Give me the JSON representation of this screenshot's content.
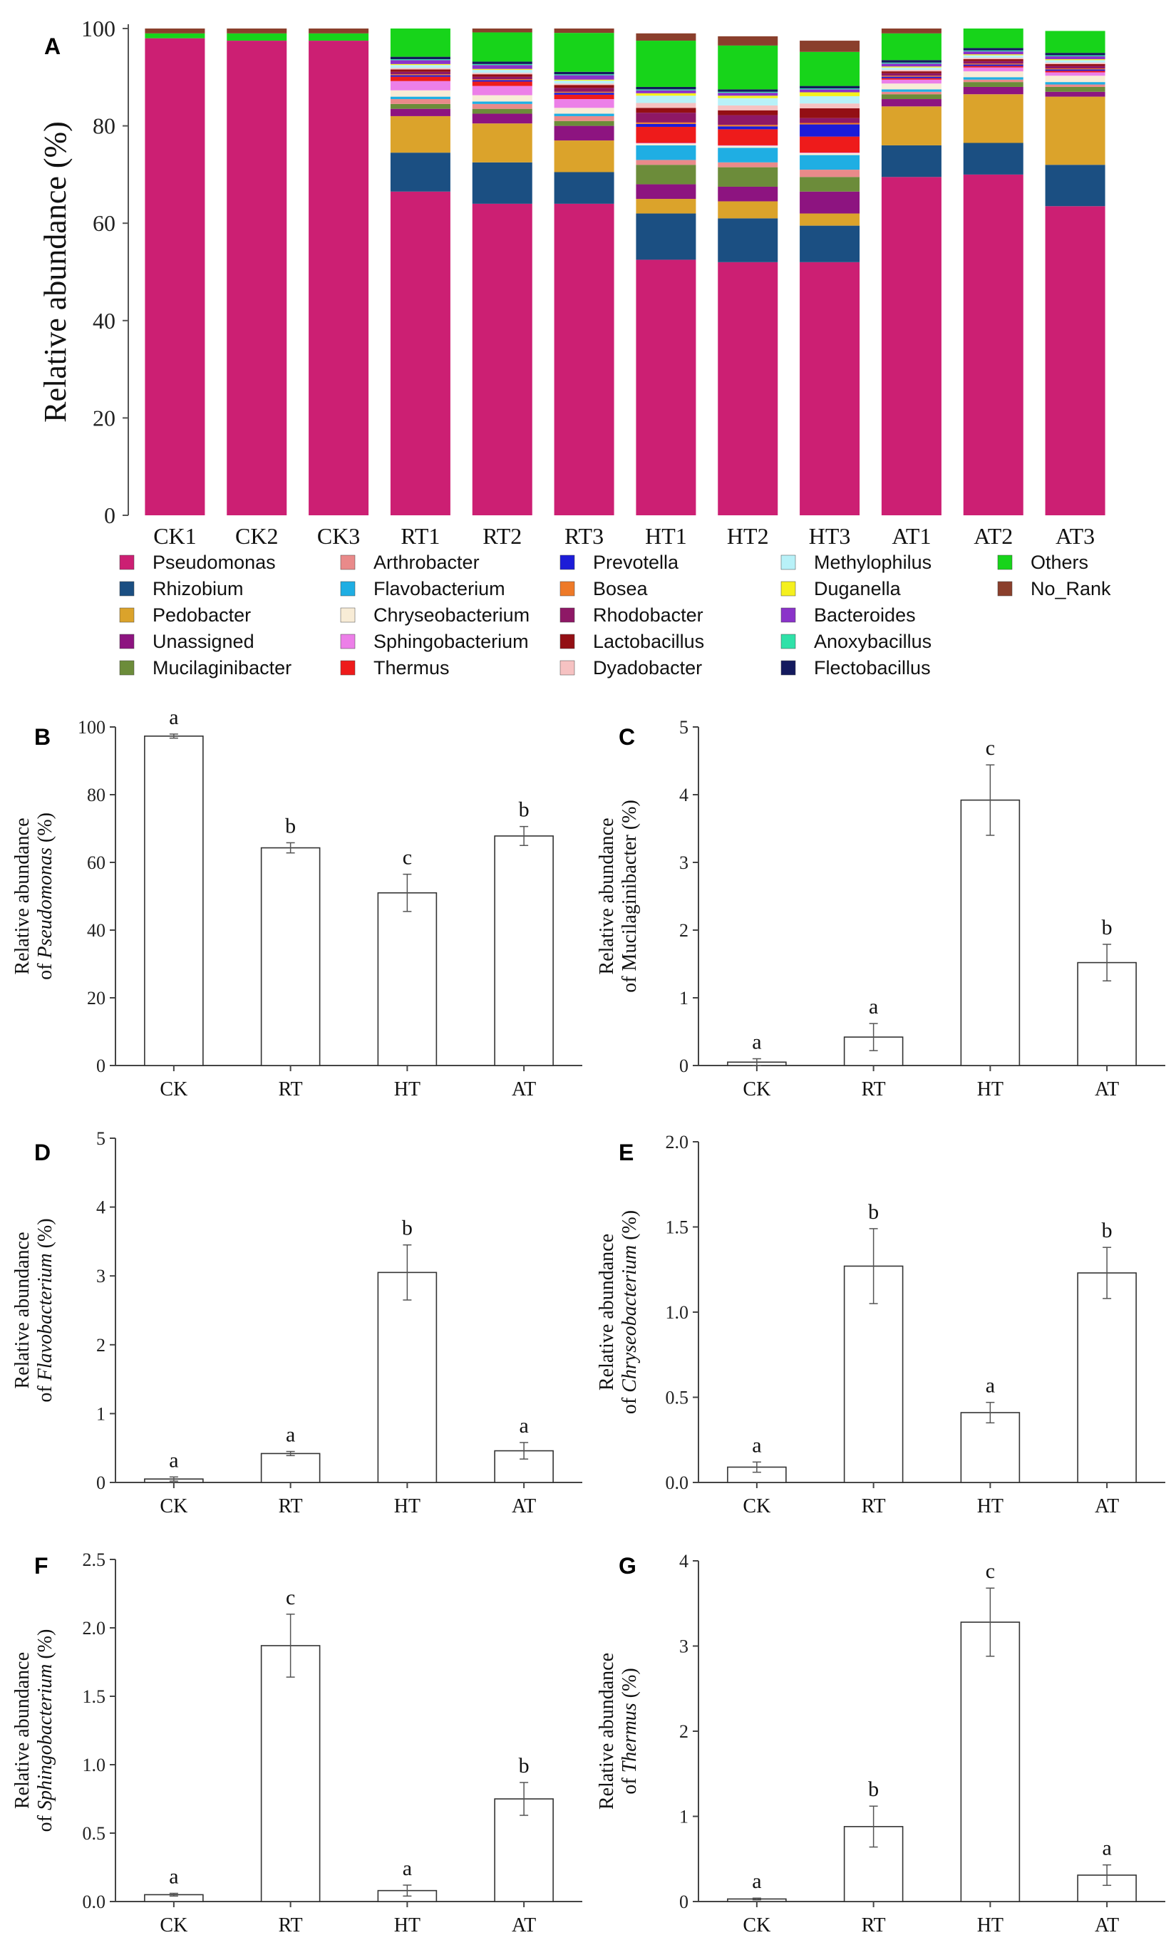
{
  "figure_title": "",
  "chart_data": [
    {
      "panel": "A",
      "type": "bar",
      "stacked": true,
      "ylabel": "Relative abundance (%)",
      "ylim": [
        0,
        100
      ],
      "yticks": [
        0,
        20,
        40,
        60,
        80,
        100
      ],
      "categories": [
        "CK1",
        "CK2",
        "CK3",
        "RT1",
        "RT2",
        "RT3",
        "HT1",
        "HT2",
        "HT3",
        "AT1",
        "AT2",
        "AT3"
      ],
      "series": [
        {
          "name": "Pseudomonas",
          "color": "#cc1f73",
          "values": [
            98,
            97.5,
            97.5,
            66.5,
            64,
            64,
            52.5,
            52,
            52,
            69.5,
            70,
            63.5
          ]
        },
        {
          "name": "Rhizobium",
          "color": "#1b4f82",
          "values": [
            0,
            0,
            0,
            8,
            8.5,
            6.5,
            9.5,
            9,
            7.5,
            6.5,
            6.5,
            8.5
          ]
        },
        {
          "name": "Pedobacter",
          "color": "#dba32b",
          "values": [
            0,
            0,
            0,
            7.5,
            8,
            6.5,
            3,
            3.5,
            2.5,
            8,
            10,
            14
          ]
        },
        {
          "name": "Unassigned",
          "color": "#8d1480",
          "values": [
            0,
            0,
            0,
            1.5,
            2,
            3,
            3,
            3,
            4.5,
            1.5,
            1.5,
            1
          ]
        },
        {
          "name": "Mucilaginibacter",
          "color": "#6c8c3a",
          "values": [
            0,
            0,
            0,
            1,
            1,
            1,
            4,
            4,
            3,
            1,
            1,
            1
          ]
        },
        {
          "name": "Arthrobacter",
          "color": "#e98a8a",
          "values": [
            0,
            0,
            0,
            1,
            1,
            1,
            1,
            1,
            1.5,
            0.5,
            0.5,
            0.5
          ]
        },
        {
          "name": "Flavobacterium",
          "color": "#1faee3",
          "values": [
            0,
            0,
            0,
            0.5,
            0.5,
            0.5,
            3,
            3,
            3,
            0.5,
            0.5,
            0.5
          ]
        },
        {
          "name": "Chryseobacterium",
          "color": "#f8ecd6",
          "values": [
            0,
            0,
            0,
            1.3,
            1.3,
            1.2,
            0.4,
            0.4,
            0.4,
            1.2,
            1.2,
            1.3
          ]
        },
        {
          "name": "Sphingobacterium",
          "color": "#ec7fe8",
          "values": [
            0,
            0,
            0,
            1.9,
            1.9,
            1.8,
            0.1,
            0.1,
            0.1,
            0.8,
            0.8,
            0.7
          ]
        },
        {
          "name": "Thermus",
          "color": "#ee1b1b",
          "values": [
            0,
            0,
            0,
            0.9,
            0.9,
            0.9,
            3.3,
            3.3,
            3.3,
            0.3,
            0.3,
            0.3
          ]
        },
        {
          "name": "Prevotella",
          "color": "#1c1cd8",
          "values": [
            0,
            0,
            0,
            0.3,
            0.3,
            0.4,
            0.6,
            0.6,
            2.5,
            0.3,
            0.3,
            0.3
          ]
        },
        {
          "name": "Bosea",
          "color": "#ee7a28",
          "values": [
            0,
            0,
            0,
            0.2,
            0.2,
            0.2,
            0.3,
            0.3,
            0.3,
            0.2,
            0.2,
            0.2
          ]
        },
        {
          "name": "Rhodobacter",
          "color": "#8e1866",
          "values": [
            0,
            0,
            0,
            0.5,
            0.5,
            0.8,
            2,
            2,
            1,
            0.5,
            0.5,
            0.5
          ]
        },
        {
          "name": "Lactobacillus",
          "color": "#930f14",
          "values": [
            0,
            0,
            0,
            0.5,
            0.5,
            0.6,
            1,
            1,
            2,
            0.4,
            0.4,
            0.4
          ]
        },
        {
          "name": "Dyadobacter",
          "color": "#f6c2c2",
          "values": [
            0,
            0,
            0,
            0.3,
            0.3,
            0.3,
            1,
            1,
            1,
            0.3,
            0.3,
            0.3
          ]
        },
        {
          "name": "Methylophilus",
          "color": "#b8f1f8",
          "values": [
            0,
            0,
            0,
            0.6,
            0.6,
            0.6,
            1.5,
            1.5,
            1.5,
            0.5,
            0.5,
            0.5
          ]
        },
        {
          "name": "Duganella",
          "color": "#f5f01e",
          "values": [
            0,
            0,
            0,
            0.2,
            0.2,
            0.2,
            0.5,
            0.5,
            0.8,
            0.2,
            0.2,
            0.2
          ]
        },
        {
          "name": "Bacteroides",
          "color": "#8a33c9",
          "values": [
            0,
            0,
            0,
            0.8,
            0.8,
            0.9,
            0.6,
            0.6,
            0.6,
            0.6,
            0.6,
            0.6
          ]
        },
        {
          "name": "Anoxybacillus",
          "color": "#2fe1a8",
          "values": [
            0,
            0,
            0,
            0.2,
            0.2,
            0.2,
            0.2,
            0.2,
            0.2,
            0.2,
            0.2,
            0.2
          ]
        },
        {
          "name": "Flectobacillus",
          "color": "#141a5e",
          "values": [
            0,
            0,
            0,
            0.5,
            0.5,
            0.5,
            0.5,
            0.5,
            0.5,
            0.5,
            0.5,
            0.5
          ]
        },
        {
          "name": "Others",
          "color": "#17d41a",
          "values": [
            1,
            1.5,
            1.5,
            6.5,
            6,
            8,
            9.5,
            9,
            7,
            5.5,
            4,
            4.5
          ]
        },
        {
          "name": "No_Rank",
          "color": "#8a3f2c",
          "values": [
            1,
            1,
            1,
            1.3,
            1.3,
            2.2,
            1.5,
            1.9,
            2.3,
            1.9,
            1.3,
            0
          ]
        }
      ]
    },
    {
      "panel": "B",
      "type": "bar",
      "ylabel_line1": "Relative abundance",
      "ylabel_line2_pre": "of ",
      "ylabel_taxon": "Pseudomonas",
      "ylabel_line2_post": " (%)",
      "categories": [
        "CK",
        "RT",
        "HT",
        "AT"
      ],
      "values": [
        97.3,
        64.3,
        51,
        67.8
      ],
      "errors": [
        0.6,
        1.5,
        5.5,
        2.8
      ],
      "letters": [
        "a",
        "b",
        "c",
        "b"
      ],
      "ylim": [
        0,
        100
      ],
      "yticks": [
        "0",
        "20",
        "40",
        "60",
        "80",
        "100"
      ]
    },
    {
      "panel": "C",
      "type": "bar",
      "ylabel_line1": "Relative abundance",
      "ylabel_line2_pre": "of ",
      "ylabel_taxon": "Mucilaginibacter",
      "ylabel_line2_post": " (%)",
      "taxon_italic": false,
      "categories": [
        "CK",
        "RT",
        "HT",
        "AT"
      ],
      "values": [
        0.05,
        0.42,
        3.92,
        1.52
      ],
      "errors": [
        0.05,
        0.2,
        0.52,
        0.27
      ],
      "letters": [
        "a",
        "a",
        "c",
        "b"
      ],
      "ylim": [
        0,
        5
      ],
      "yticks": [
        "0",
        "1",
        "2",
        "3",
        "4",
        "5"
      ]
    },
    {
      "panel": "D",
      "type": "bar",
      "ylabel_line1": "Relative abundance",
      "ylabel_line2_pre": "of ",
      "ylabel_taxon": "Flavobacterium",
      "ylabel_line2_post": " (%)",
      "categories": [
        "CK",
        "RT",
        "HT",
        "AT"
      ],
      "values": [
        0.05,
        0.42,
        3.05,
        0.46
      ],
      "errors": [
        0.03,
        0.03,
        0.4,
        0.12
      ],
      "letters": [
        "a",
        "a",
        "b",
        "a"
      ],
      "ylim": [
        0,
        5
      ],
      "yticks": [
        "0",
        "1",
        "2",
        "3",
        "4",
        "5"
      ]
    },
    {
      "panel": "E",
      "type": "bar",
      "ylabel_line1": "Relative abundance",
      "ylabel_line2_pre": "of ",
      "ylabel_taxon": "Chryseobacterium",
      "ylabel_line2_post": " (%)",
      "categories": [
        "CK",
        "RT",
        "HT",
        "AT"
      ],
      "values": [
        0.09,
        1.27,
        0.41,
        1.23
      ],
      "errors": [
        0.03,
        0.22,
        0.06,
        0.15
      ],
      "letters": [
        "a",
        "b",
        "a",
        "b"
      ],
      "ylim": [
        0,
        2
      ],
      "yticks": [
        "0.0",
        "0.5",
        "1.0",
        "1.5",
        "2.0"
      ]
    },
    {
      "panel": "F",
      "type": "bar",
      "ylabel_line1": "Relative abundance",
      "ylabel_line2_pre": "of ",
      "ylabel_taxon": "Sphingobacterium",
      "ylabel_line2_post": " (%)",
      "categories": [
        "CK",
        "RT",
        "HT",
        "AT"
      ],
      "values": [
        0.05,
        1.87,
        0.08,
        0.75
      ],
      "errors": [
        0.01,
        0.23,
        0.04,
        0.12
      ],
      "letters": [
        "a",
        "c",
        "a",
        "b"
      ],
      "ylim": [
        0,
        2.5
      ],
      "yticks": [
        "0.0",
        "0.5",
        "1.0",
        "1.5",
        "2.0",
        "2.5"
      ]
    },
    {
      "panel": "G",
      "type": "bar",
      "ylabel_line1": "Relative abundance",
      "ylabel_line2_pre": "of ",
      "ylabel_taxon": "Thermus",
      "ylabel_line2_post": " (%)",
      "categories": [
        "CK",
        "RT",
        "HT",
        "AT"
      ],
      "values": [
        0.03,
        0.88,
        3.28,
        0.31
      ],
      "errors": [
        0.01,
        0.24,
        0.4,
        0.12
      ],
      "letters": [
        "a",
        "b",
        "c",
        "a"
      ],
      "ylim": [
        0,
        4
      ],
      "yticks": [
        "0",
        "1",
        "2",
        "3",
        "4"
      ]
    }
  ]
}
